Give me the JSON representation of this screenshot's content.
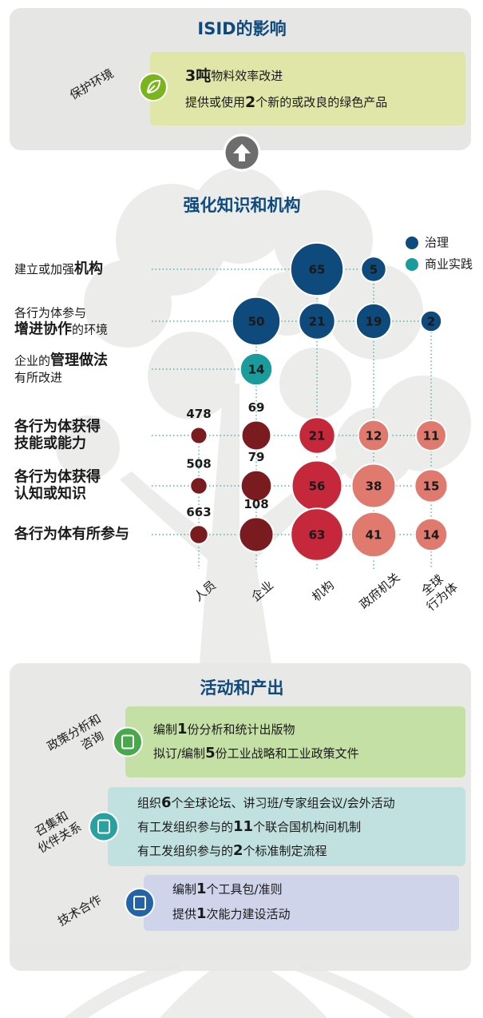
{
  "impact": {
    "title": "ISID的影响",
    "category": "保护环境",
    "lines": [
      [
        {
          "text": "3吨",
          "bold": true
        },
        {
          "text": "物料效率改进"
        }
      ],
      [
        {
          "text": "提供或使用"
        },
        {
          "text": "2",
          "bold": true
        },
        {
          "text": "个新的或改良的绿色产品"
        }
      ]
    ]
  },
  "knowledge": {
    "title": "强化知识和机构",
    "legend": [
      {
        "name": "治理",
        "color": "#0f4a7d"
      },
      {
        "name": "商业实践",
        "color": "#1a9c9c"
      }
    ],
    "columns": [
      [
        "人员"
      ],
      [
        "企业"
      ],
      [
        "机构"
      ],
      [
        "政府机关"
      ],
      [
        "全球",
        "行为体"
      ]
    ],
    "rows": [
      {
        "label": [
          [
            {
              "text": "建立或加强"
            },
            {
              "text": "机构",
              "bold": true
            }
          ]
        ],
        "values": [
          null,
          null,
          65,
          5,
          null
        ],
        "colors": [
          null,
          null,
          "#0f4a7d",
          "#0f4a7d",
          null
        ]
      },
      {
        "label": [
          [
            {
              "text": "各行为体参与"
            }
          ],
          [
            {
              "text": "增进协作",
              "bold": true
            },
            {
              "text": "的环境"
            }
          ]
        ],
        "values": [
          null,
          50,
          21,
          19,
          2
        ],
        "colors": [
          null,
          "#0f4a7d",
          "#0f4a7d",
          "#0f4a7d",
          "#0f4a7d"
        ]
      },
      {
        "label": [
          [
            {
              "text": "企业的"
            },
            {
              "text": "管理做法",
              "bold": true
            }
          ],
          [
            {
              "text": "有所改进"
            }
          ]
        ],
        "values": [
          null,
          14,
          null,
          null,
          null
        ],
        "colors": [
          null,
          "#1a9c9c",
          null,
          null,
          null
        ]
      },
      {
        "label": [
          [
            {
              "text": "各行为体获得",
              "bold": true
            }
          ],
          [
            {
              "text": "技能或能力",
              "bold": true
            }
          ]
        ],
        "values": [
          478,
          69,
          21,
          12,
          11
        ],
        "colors": [
          "#7a1c1f",
          "#7a1c1f",
          "#c5283a",
          "#e07a6e",
          "#e07a6e"
        ],
        "outside_labels": [
          true,
          true,
          false,
          false,
          false
        ]
      },
      {
        "label": [
          [
            {
              "text": "各行为体获得",
              "bold": true
            }
          ],
          [
            {
              "text": "认知或知识",
              "bold": true
            }
          ]
        ],
        "values": [
          508,
          79,
          56,
          38,
          15
        ],
        "colors": [
          "#7a1c1f",
          "#7a1c1f",
          "#c5283a",
          "#e07a6e",
          "#e07a6e"
        ],
        "outside_labels": [
          true,
          true,
          false,
          false,
          false
        ]
      },
      {
        "label": [
          [
            {
              "text": "各行为体有所参与",
              "bold": true
            }
          ]
        ],
        "values": [
          663,
          108,
          63,
          41,
          14
        ],
        "colors": [
          "#7a1c1f",
          "#7a1c1f",
          "#c5283a",
          "#e07a6e",
          "#e07a6e"
        ],
        "outside_labels": [
          true,
          true,
          false,
          false,
          false
        ]
      }
    ]
  },
  "activities": {
    "title": "活动和产出",
    "groups": [
      {
        "category": [
          "政策分析和",
          "咨询"
        ],
        "color": "#c5e0a5",
        "icon_color": "#4aa84c",
        "lines": [
          [
            {
              "text": "编制"
            },
            {
              "text": "1",
              "bold": true
            },
            {
              "text": "份分析和统计出版物"
            }
          ],
          [
            {
              "text": "拟订/编制"
            },
            {
              "text": "5",
              "bold": true
            },
            {
              "text": "份工业战略和工业政策文件"
            }
          ]
        ]
      },
      {
        "category": [
          "召集和",
          "伙伴关系"
        ],
        "color": "#c0e1df",
        "icon_color": "#2aa0a0",
        "lines": [
          [
            {
              "text": "组织"
            },
            {
              "text": "6",
              "bold": true
            },
            {
              "text": "个全球论坛、讲习班/专家组会议/会外活动"
            }
          ],
          [
            {
              "text": "有工发组织参与的"
            },
            {
              "text": "11",
              "bold": true
            },
            {
              "text": "个联合国机构间机制"
            }
          ],
          [
            {
              "text": "有工发组织参与的"
            },
            {
              "text": "2",
              "bold": true
            },
            {
              "text": "个标准制定流程"
            }
          ]
        ]
      },
      {
        "category": [
          "技术合作"
        ],
        "color": "#cfd4ea",
        "icon_color": "#2463a8",
        "lines": [
          [
            {
              "text": "编制"
            },
            {
              "text": "1",
              "bold": true
            },
            {
              "text": "个工具包/准则"
            }
          ],
          [
            {
              "text": "提供"
            },
            {
              "text": "1",
              "bold": true
            },
            {
              "text": "次能力建设活动"
            }
          ]
        ]
      }
    ]
  }
}
